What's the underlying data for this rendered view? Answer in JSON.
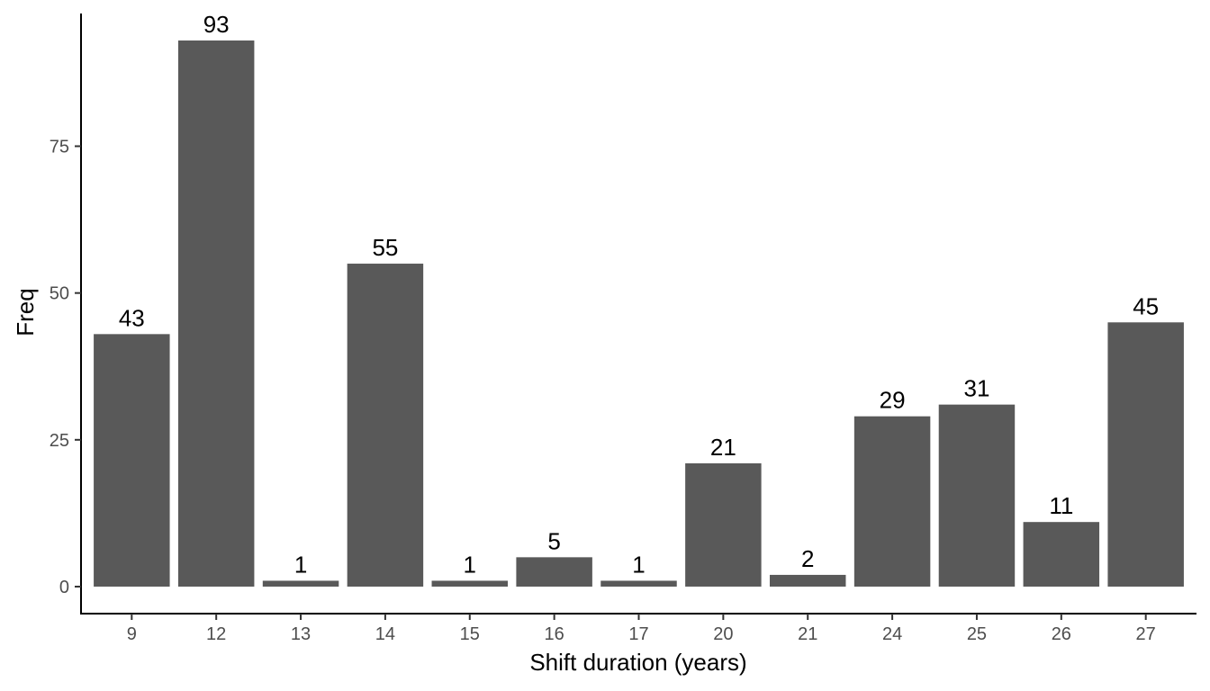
{
  "chart_data": {
    "type": "bar",
    "title": "",
    "xlabel": "Shift duration (years)",
    "ylabel": "Freq",
    "categories": [
      "9",
      "12",
      "13",
      "14",
      "15",
      "16",
      "17",
      "20",
      "21",
      "24",
      "25",
      "26",
      "27"
    ],
    "values": [
      43,
      93,
      1,
      55,
      1,
      5,
      1,
      21,
      2,
      29,
      31,
      11,
      45
    ],
    "yticks": [
      0,
      25,
      50,
      75
    ],
    "ylim": [
      -4.6,
      97.6
    ],
    "grid": false,
    "legend": "none",
    "bar_color": "#595959",
    "show_data_labels": true
  }
}
